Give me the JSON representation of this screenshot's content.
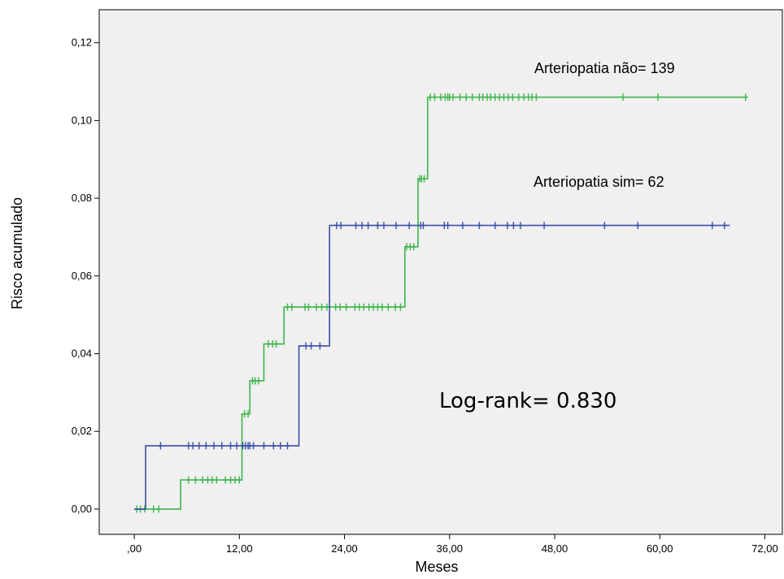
{
  "chart_data": {
    "type": "line",
    "step": true,
    "xlabel": "Meses",
    "ylabel": "Risco acumulado",
    "xlim": [
      -4,
      74
    ],
    "ylim": [
      -0.0065,
      0.1285
    ],
    "x_ticks": [
      0,
      12,
      24,
      36,
      48,
      60,
      72
    ],
    "x_tick_labels": [
      ",00",
      "12,00",
      "24,00",
      "36,00",
      "48,00",
      "60,00",
      "72,00"
    ],
    "y_ticks": [
      0,
      0.02,
      0.04,
      0.06,
      0.08,
      0.1,
      0.12
    ],
    "y_tick_labels": [
      "0,00",
      "0,02",
      "0,04",
      "0,06",
      "0,08",
      "0,10",
      "0,12"
    ],
    "grid": false,
    "background_color": "#f0f0f0",
    "annotation": "Log-rank= 0.830",
    "series": [
      {
        "name": "Arteriopatia não= 139",
        "color": "#3cb54a",
        "steps": [
          [
            0,
            0
          ],
          [
            5.3,
            0.0075
          ],
          [
            12.3,
            0.0245
          ],
          [
            13.2,
            0.033
          ],
          [
            14.8,
            0.0425
          ],
          [
            17.1,
            0.052
          ],
          [
            30.9,
            0.0675
          ],
          [
            32.4,
            0.085
          ],
          [
            33.5,
            0.106
          ]
        ],
        "end_x": 70,
        "censored": [
          0.3,
          0.7,
          1.2,
          2.2,
          2.8,
          6.2,
          7.0,
          7.8,
          8.4,
          8.9,
          9.4,
          10.4,
          11.0,
          11.5,
          12.0,
          12.6,
          13.0,
          13.5,
          13.8,
          14.2,
          15.3,
          15.8,
          16.2,
          17.5,
          18.0,
          19.5,
          19.9,
          20.8,
          21.4,
          22.0,
          23.0,
          23.5,
          24.2,
          25.2,
          25.7,
          26.2,
          26.8,
          27.3,
          27.8,
          28.3,
          29.0,
          29.8,
          30.4,
          31.1,
          31.5,
          31.9,
          32.6,
          32.8,
          33.1,
          33.8,
          34.3,
          35.0,
          35.5,
          35.8,
          36.0,
          36.4,
          37.2,
          37.9,
          38.6,
          39.4,
          39.8,
          40.3,
          40.7,
          41.2,
          41.7,
          42.2,
          42.7,
          43.2,
          43.9,
          44.5,
          45.0,
          45.4,
          45.9,
          55.8,
          59.8,
          69.8
        ]
      },
      {
        "name": "Arteriopatia sim= 62",
        "color": "#3a4fa8",
        "steps": [
          [
            0,
            0
          ],
          [
            1.3,
            0.0163
          ],
          [
            18.8,
            0.042
          ],
          [
            22.3,
            0.073
          ]
        ],
        "end_x": 68,
        "censored": [
          3.0,
          6.2,
          6.7,
          7.4,
          8.2,
          9.1,
          10.0,
          11.0,
          11.7,
          12.4,
          12.7,
          13.0,
          13.2,
          13.6,
          14.8,
          15.9,
          16.7,
          17.5,
          19.6,
          20.2,
          21.2,
          23.1,
          23.6,
          25.3,
          26.0,
          26.7,
          27.8,
          28.5,
          29.9,
          31.4,
          32.7,
          33.0,
          35.4,
          35.8,
          37.5,
          39.4,
          41.2,
          42.6,
          43.3,
          44.1,
          46.8,
          53.7,
          57.5,
          66.0,
          67.4
        ]
      }
    ]
  }
}
